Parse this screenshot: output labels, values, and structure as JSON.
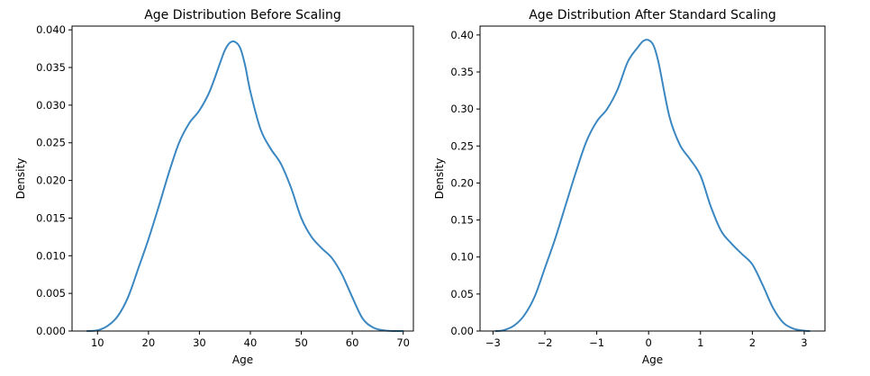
{
  "chart_data": [
    {
      "type": "line",
      "title": "Age Distribution Before Scaling",
      "xlabel": "Age",
      "ylabel": "Density",
      "xlim": [
        5.0,
        72.0
      ],
      "ylim": [
        0.0,
        0.0405
      ],
      "xticks": [
        10,
        20,
        30,
        40,
        50,
        60,
        70
      ],
      "xtick_labels": [
        "10",
        "20",
        "30",
        "40",
        "50",
        "60",
        "70"
      ],
      "yticks": [
        0.0,
        0.005,
        0.01,
        0.015,
        0.02,
        0.025,
        0.03,
        0.035,
        0.04
      ],
      "ytick_labels": [
        "0.000",
        "0.005",
        "0.010",
        "0.015",
        "0.020",
        "0.025",
        "0.030",
        "0.035",
        "0.040"
      ],
      "grid": false,
      "color": "#3b87c1",
      "series": [
        {
          "x": [
            8,
            10,
            12,
            14,
            16,
            18,
            20,
            22,
            24,
            26,
            28,
            30,
            32,
            34,
            35,
            36,
            37,
            38,
            39,
            40,
            42,
            44,
            46,
            48,
            50,
            52,
            54,
            56,
            58,
            60,
            62,
            64,
            66,
            68,
            70
          ],
          "y": [
            0.0,
            0.0001,
            0.0007,
            0.002,
            0.0045,
            0.0083,
            0.0122,
            0.0165,
            0.021,
            0.025,
            0.0276,
            0.0293,
            0.0318,
            0.0355,
            0.0373,
            0.0383,
            0.0384,
            0.0376,
            0.0352,
            0.0318,
            0.0268,
            0.0242,
            0.0222,
            0.019,
            0.015,
            0.0125,
            0.011,
            0.0097,
            0.0075,
            0.0045,
            0.0017,
            0.0005,
            0.0001,
            0.0,
            0.0
          ]
        }
      ]
    },
    {
      "type": "line",
      "title": "Age Distribution After Standard Scaling",
      "xlabel": "Age",
      "ylabel": "Density",
      "xlim": [
        -3.25,
        3.4
      ],
      "ylim": [
        0.0,
        0.412
      ],
      "xticks": [
        -3,
        -2,
        -1,
        0,
        1,
        2,
        3
      ],
      "xtick_labels": [
        "−3",
        "−2",
        "−1",
        "0",
        "1",
        "2",
        "3"
      ],
      "yticks": [
        0.0,
        0.05,
        0.1,
        0.15,
        0.2,
        0.25,
        0.3,
        0.35,
        0.4
      ],
      "ytick_labels": [
        "0.00",
        "0.05",
        "0.10",
        "0.15",
        "0.20",
        "0.25",
        "0.30",
        "0.35",
        "0.40"
      ],
      "grid": false,
      "color": "#3b87c1",
      "series": [
        {
          "x": [
            -2.95,
            -2.8,
            -2.6,
            -2.4,
            -2.2,
            -2.0,
            -1.8,
            -1.6,
            -1.4,
            -1.2,
            -1.0,
            -0.8,
            -0.6,
            -0.4,
            -0.2,
            -0.1,
            0.0,
            0.1,
            0.2,
            0.4,
            0.6,
            0.8,
            1.0,
            1.2,
            1.4,
            1.6,
            1.8,
            2.0,
            2.2,
            2.4,
            2.6,
            2.8,
            3.0,
            3.1
          ],
          "y": [
            0.0,
            0.001,
            0.007,
            0.021,
            0.046,
            0.085,
            0.125,
            0.17,
            0.215,
            0.256,
            0.283,
            0.3,
            0.326,
            0.364,
            0.384,
            0.392,
            0.393,
            0.385,
            0.36,
            0.29,
            0.252,
            0.232,
            0.21,
            0.168,
            0.135,
            0.118,
            0.104,
            0.09,
            0.062,
            0.031,
            0.011,
            0.003,
            0.0005,
            0.0
          ]
        }
      ]
    }
  ]
}
